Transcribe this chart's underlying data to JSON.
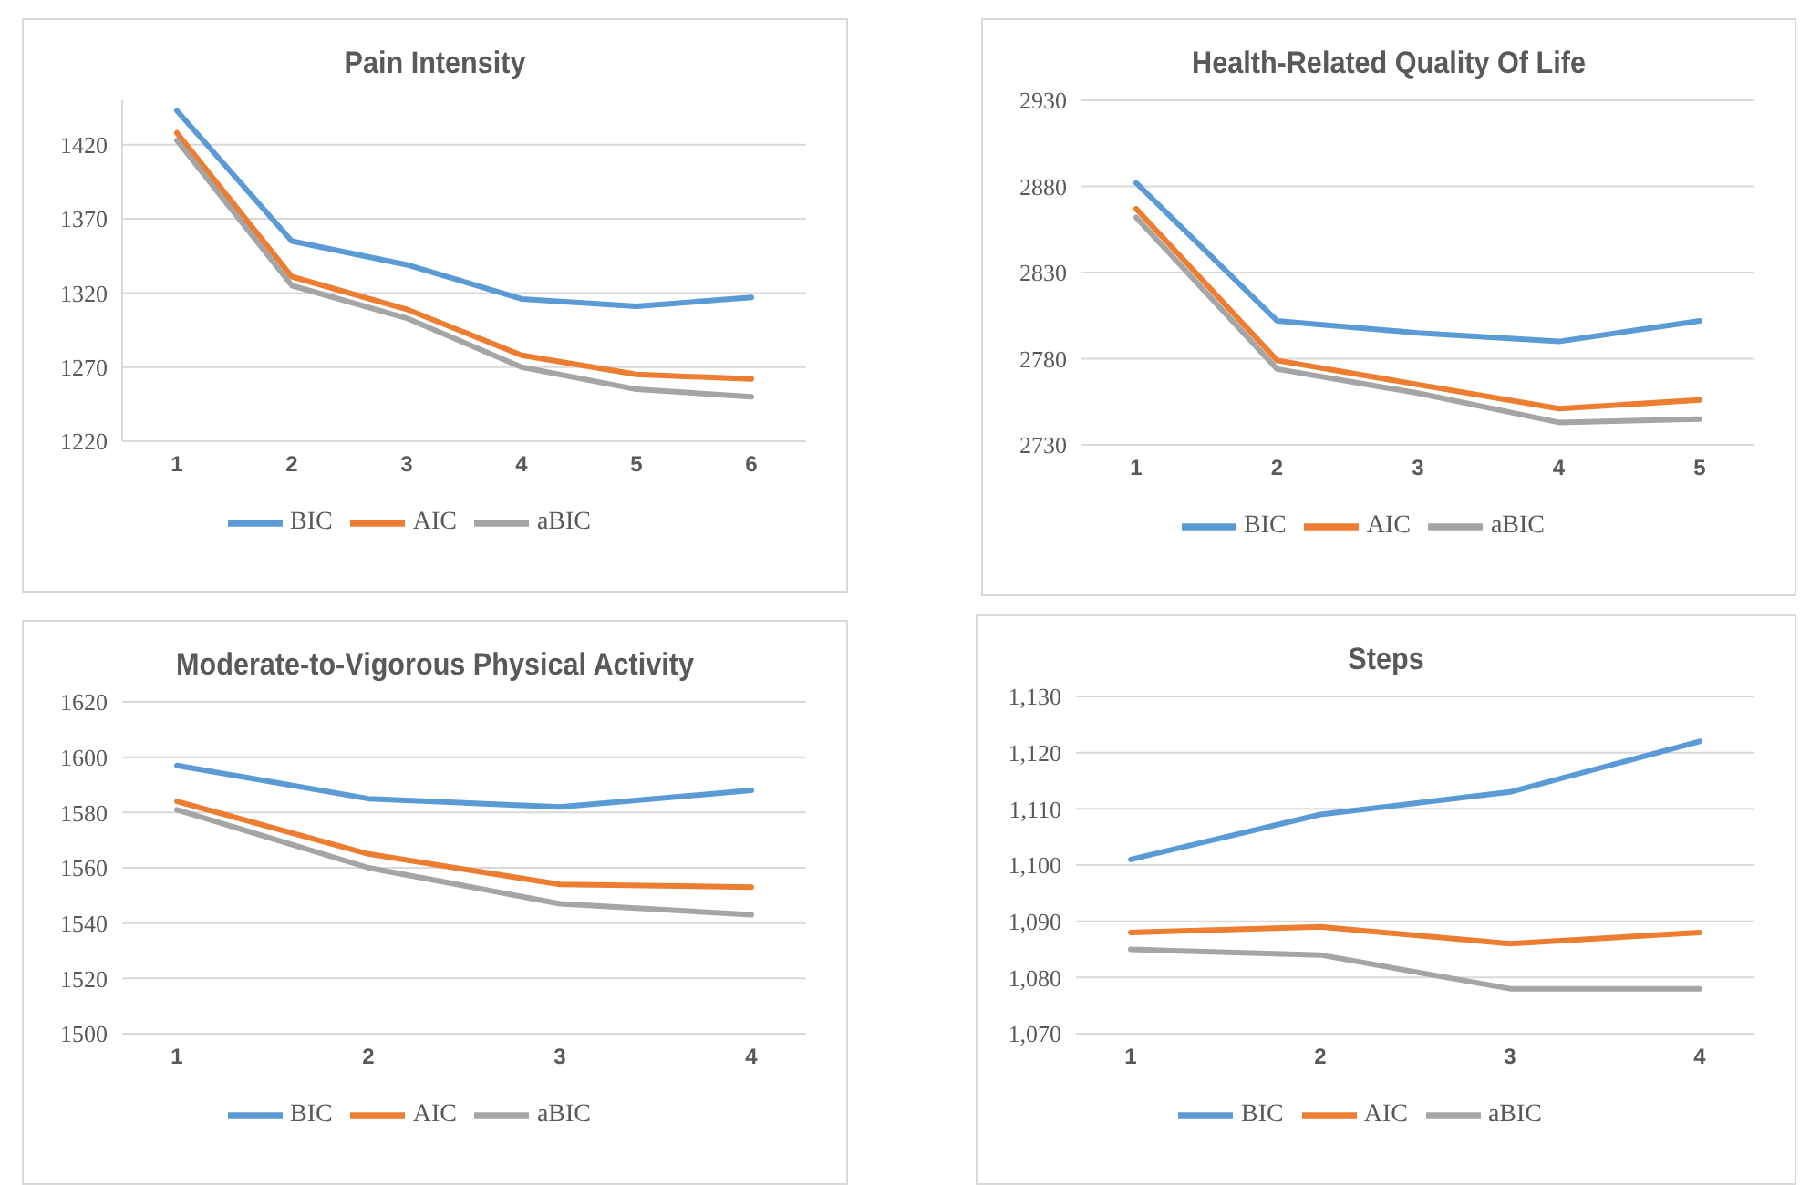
{
  "chart_data": [
    {
      "type": "line",
      "title": "Pain Intensity",
      "categories": [
        "1",
        "2",
        "3",
        "4",
        "5",
        "6"
      ],
      "ylim": [
        1220,
        1450
      ],
      "yticks": [
        1220,
        1270,
        1320,
        1370,
        1420
      ],
      "grid": "y",
      "legend": "bottom",
      "marker": "none",
      "line_style": "solid",
      "series": [
        {
          "name": "BIC",
          "color": "#5b9bd5",
          "values": [
            1443,
            1355,
            1339,
            1316,
            1311,
            1317
          ]
        },
        {
          "name": "AIC",
          "color": "#ed7d31",
          "values": [
            1428,
            1331,
            1309,
            1278,
            1265,
            1262
          ]
        },
        {
          "name": "aBIC",
          "color": "#a5a5a5",
          "values": [
            1423,
            1325,
            1303,
            1270,
            1255,
            1250
          ]
        }
      ]
    },
    {
      "type": "line",
      "title": "Health-Related Quality Of Life",
      "categories": [
        "1",
        "2",
        "3",
        "4",
        "5"
      ],
      "ylim": [
        2730,
        2930
      ],
      "yticks": [
        2730,
        2780,
        2830,
        2880,
        2930
      ],
      "grid": "y",
      "legend": "bottom",
      "marker": "none",
      "line_style": "solid",
      "series": [
        {
          "name": "BIC",
          "color": "#5b9bd5",
          "values": [
            2882,
            2802,
            2795,
            2790,
            2802
          ]
        },
        {
          "name": "AIC",
          "color": "#ed7d31",
          "values": [
            2867,
            2779,
            2765,
            2751,
            2756
          ]
        },
        {
          "name": "aBIC",
          "color": "#a5a5a5",
          "values": [
            2862,
            2774,
            2760,
            2743,
            2745
          ]
        }
      ]
    },
    {
      "type": "line",
      "title": "Moderate-to-Vigorous Physical Activity",
      "categories": [
        "1",
        "2",
        "3",
        "4"
      ],
      "ylim": [
        1500,
        1620
      ],
      "yticks": [
        1500,
        1520,
        1540,
        1560,
        1580,
        1600,
        1620
      ],
      "grid": "y",
      "legend": "bottom",
      "marker": "none",
      "line_style": "solid",
      "series": [
        {
          "name": "BIC",
          "color": "#5b9bd5",
          "values": [
            1597,
            1585,
            1582,
            1588
          ]
        },
        {
          "name": "AIC",
          "color": "#ed7d31",
          "values": [
            1584,
            1565,
            1554,
            1553
          ]
        },
        {
          "name": "aBIC",
          "color": "#a5a5a5",
          "values": [
            1581,
            1560,
            1547,
            1543
          ]
        }
      ]
    },
    {
      "type": "line",
      "title": "Steps",
      "categories": [
        "1",
        "2",
        "3",
        "4"
      ],
      "ylim": [
        1070,
        1130
      ],
      "yticks": [
        {
          "value": 1070,
          "label": "1,070"
        },
        {
          "value": 1080,
          "label": "1,080"
        },
        {
          "value": 1090,
          "label": "1,090"
        },
        {
          "value": 1100,
          "label": "1,100"
        },
        {
          "value": 1110,
          "label": "1,110"
        },
        {
          "value": 1120,
          "label": "1,120"
        },
        {
          "value": 1130,
          "label": "1,130"
        }
      ],
      "grid": "y",
      "legend": "bottom",
      "marker": "none",
      "line_style": "solid",
      "series": [
        {
          "name": "BIC",
          "color": "#5b9bd5",
          "values": [
            1101,
            1109,
            1113,
            1122
          ]
        },
        {
          "name": "AIC",
          "color": "#ed7d31",
          "values": [
            1088,
            1089,
            1086,
            1088
          ]
        },
        {
          "name": "aBIC",
          "color": "#a5a5a5",
          "values": [
            1085,
            1084,
            1078,
            1078
          ]
        }
      ]
    }
  ]
}
